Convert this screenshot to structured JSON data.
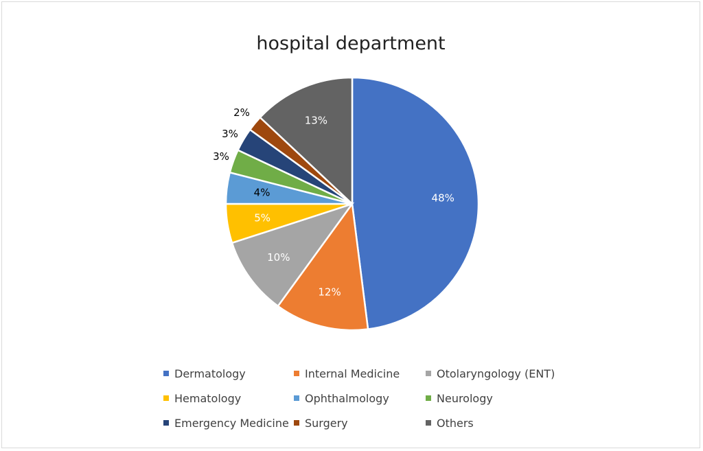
{
  "chart_data": {
    "type": "pie",
    "title": "hospital department",
    "legend_position": "bottom",
    "categories": [
      "Dermatology",
      "Internal Medicine",
      "Otolaryngology (ENT)",
      "Hematology",
      "Ophthalmology",
      "Neurology",
      "Emergency Medicine",
      "Surgery",
      "Others"
    ],
    "values": [
      48,
      12,
      10,
      5,
      4,
      3,
      3,
      2,
      13
    ],
    "data_labels": [
      "48%",
      "12%",
      "10%",
      "5%",
      "4%",
      "3%",
      "3%",
      "2%",
      "13%"
    ],
    "colors": [
      "#4472C4",
      "#ED7D31",
      "#A5A5A5",
      "#FFC000",
      "#5B9BD5",
      "#70AD47",
      "#264478",
      "#9E480E",
      "#636363"
    ],
    "label_colors": [
      "#ffffff",
      "#ffffff",
      "#ffffff",
      "#ffffff",
      "#000000",
      "#000000",
      "#000000",
      "#000000",
      "#ffffff"
    ]
  }
}
